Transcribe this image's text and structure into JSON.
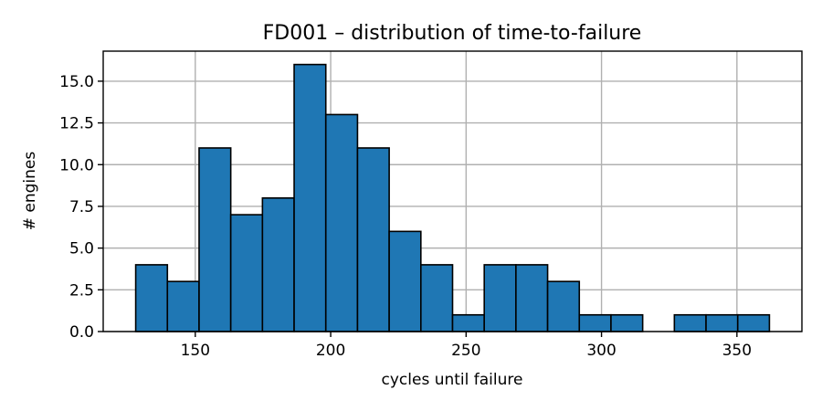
{
  "chart_data": {
    "type": "bar",
    "title": "FD001 – distribution of time-to-failure",
    "xlabel": "cycles until failure",
    "ylabel": "# engines",
    "bar_color": "#1f77b4",
    "edge_color": "#000000",
    "grid": true,
    "xlim": [
      116,
      374
    ],
    "ylim": [
      0,
      16.8
    ],
    "xticks": [
      150,
      200,
      250,
      300,
      350
    ],
    "xtick_labels": [
      "150",
      "200",
      "250",
      "300",
      "350"
    ],
    "yticks": [
      0,
      2.5,
      5,
      7.5,
      10,
      12.5,
      15
    ],
    "ytick_labels": [
      "0.0",
      "2.5",
      "5.0",
      "7.5",
      "10.0",
      "12.5",
      "15.0"
    ],
    "bins": [
      {
        "x0": 128.0,
        "x1": 139.7,
        "count": 4
      },
      {
        "x0": 139.7,
        "x1": 151.4,
        "count": 3
      },
      {
        "x0": 151.4,
        "x1": 163.1,
        "count": 11
      },
      {
        "x0": 163.1,
        "x1": 174.8,
        "count": 7
      },
      {
        "x0": 174.8,
        "x1": 186.5,
        "count": 8
      },
      {
        "x0": 186.5,
        "x1": 198.2,
        "count": 16
      },
      {
        "x0": 198.2,
        "x1": 209.9,
        "count": 13
      },
      {
        "x0": 209.9,
        "x1": 221.6,
        "count": 11
      },
      {
        "x0": 221.6,
        "x1": 233.3,
        "count": 6
      },
      {
        "x0": 233.3,
        "x1": 245.0,
        "count": 4
      },
      {
        "x0": 245.0,
        "x1": 256.7,
        "count": 1
      },
      {
        "x0": 256.7,
        "x1": 268.4,
        "count": 4
      },
      {
        "x0": 268.4,
        "x1": 280.1,
        "count": 4
      },
      {
        "x0": 280.1,
        "x1": 291.8,
        "count": 3
      },
      {
        "x0": 291.8,
        "x1": 303.5,
        "count": 1
      },
      {
        "x0": 303.5,
        "x1": 315.2,
        "count": 1
      },
      {
        "x0": 315.2,
        "x1": 326.9,
        "count": 0
      },
      {
        "x0": 326.9,
        "x1": 338.6,
        "count": 1
      },
      {
        "x0": 338.6,
        "x1": 350.3,
        "count": 1
      },
      {
        "x0": 350.3,
        "x1": 362.0,
        "count": 1
      }
    ]
  }
}
